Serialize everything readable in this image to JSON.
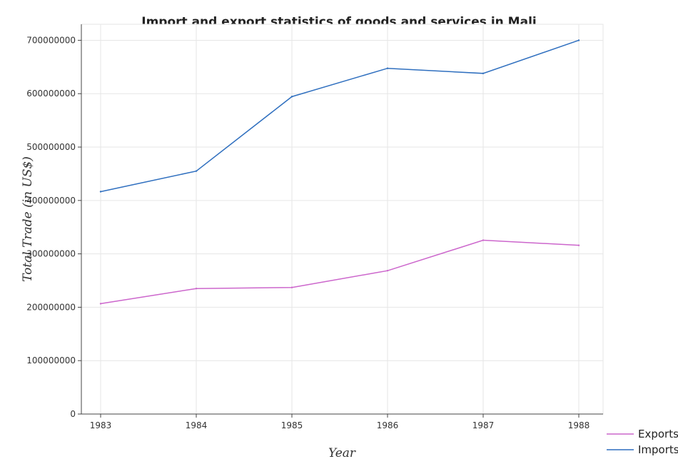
{
  "chart_data": {
    "type": "line",
    "title": "Import and export statistics of goods and services in Mali",
    "xlabel": "Year",
    "ylabel": "Total Trade (in US$)",
    "categories": [
      "1983",
      "1984",
      "1985",
      "1986",
      "1987",
      "1988"
    ],
    "ylim": [
      0,
      730000000
    ],
    "yticks": [
      0,
      100000000,
      200000000,
      300000000,
      400000000,
      500000000,
      600000000,
      700000000
    ],
    "ytick_labels": [
      "0",
      "100000000",
      "200000000",
      "300000000",
      "400000000",
      "500000000",
      "600000000",
      "700000000"
    ],
    "grid": true,
    "legend_position": "bottom-right",
    "series": [
      {
        "name": "Exports",
        "color": "#cc66cc",
        "values": [
          206700000,
          235000000,
          237000000,
          268500000,
          325500000,
          316000000
        ]
      },
      {
        "name": "Imports",
        "color": "#2f6fbf",
        "values": [
          416500000,
          455000000,
          594500000,
          647500000,
          638000000,
          700000000
        ]
      }
    ]
  }
}
